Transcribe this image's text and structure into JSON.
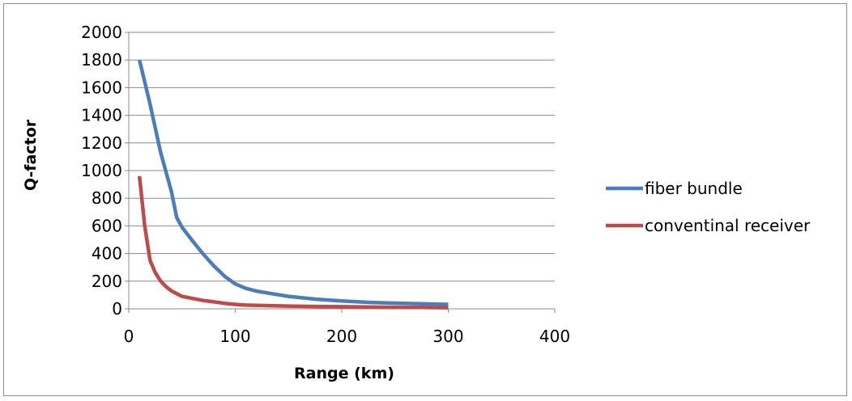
{
  "chart_data": {
    "type": "line",
    "title": "",
    "xlabel": "Range (km)",
    "ylabel": "Q-factor",
    "xlim": [
      0,
      400
    ],
    "ylim": [
      0,
      2000
    ],
    "xticks": [
      0,
      100,
      200,
      300,
      400
    ],
    "yticks": [
      0,
      200,
      400,
      600,
      800,
      1000,
      1200,
      1400,
      1600,
      1800,
      2000
    ],
    "xtick_labels": [
      "0",
      "100",
      "200",
      "300",
      "400"
    ],
    "ytick_labels": [
      "0",
      "200",
      "400",
      "600",
      "800",
      "1000",
      "1200",
      "1400",
      "1600",
      "1800",
      "2000"
    ],
    "grid": "horizontal",
    "legend_position": "right",
    "series": [
      {
        "name": "fiber bundle",
        "color": "#4a7ebb",
        "x": [
          10,
          20,
          30,
          40,
          45,
          50,
          60,
          70,
          80,
          90,
          100,
          110,
          120,
          130,
          150,
          175,
          200,
          225,
          250,
          275,
          300
        ],
        "y": [
          1800,
          1480,
          1130,
          850,
          660,
          590,
          490,
          395,
          310,
          235,
          180,
          148,
          128,
          115,
          90,
          70,
          57,
          47,
          41,
          36,
          32
        ]
      },
      {
        "name": "conventinal receiver",
        "color": "#be4b48",
        "x": [
          10,
          15,
          20,
          25,
          30,
          35,
          40,
          45,
          50,
          60,
          70,
          80,
          90,
          100,
          110,
          125,
          150,
          175,
          200,
          225,
          250,
          275,
          300
        ],
        "y": [
          960,
          600,
          350,
          260,
          200,
          160,
          130,
          110,
          90,
          75,
          60,
          50,
          40,
          32,
          27,
          24,
          20,
          17,
          15,
          13,
          11,
          10,
          8
        ]
      }
    ]
  }
}
